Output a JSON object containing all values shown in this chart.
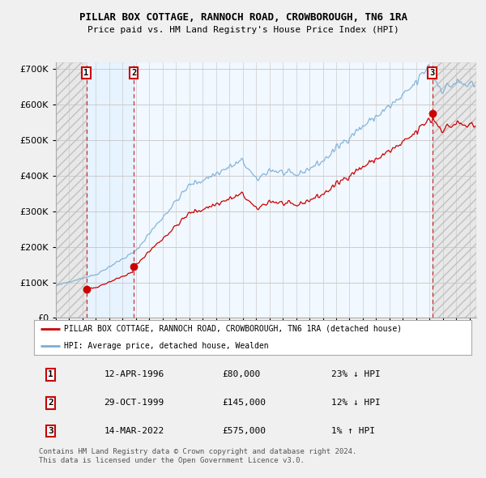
{
  "title": "PILLAR BOX COTTAGE, RANNOCH ROAD, CROWBOROUGH, TN6 1RA",
  "subtitle": "Price paid vs. HM Land Registry's House Price Index (HPI)",
  "ylim": [
    0,
    720000
  ],
  "yticks": [
    0,
    100000,
    200000,
    300000,
    400000,
    500000,
    600000,
    700000
  ],
  "ytick_labels": [
    "£0",
    "£100K",
    "£200K",
    "£300K",
    "£400K",
    "£500K",
    "£600K",
    "£700K"
  ],
  "xmin": 1994.0,
  "xmax": 2025.5,
  "sale_dates": [
    1996.28,
    1999.83,
    2022.2
  ],
  "sale_prices": [
    80000,
    145000,
    575000
  ],
  "sale_labels": [
    "1",
    "2",
    "3"
  ],
  "legend_red": "PILLAR BOX COTTAGE, RANNOCH ROAD, CROWBOROUGH, TN6 1RA (detached house)",
  "legend_blue": "HPI: Average price, detached house, Wealden",
  "table_rows": [
    [
      "1",
      "12-APR-1996",
      "£80,000",
      "23% ↓ HPI"
    ],
    [
      "2",
      "29-OCT-1999",
      "£145,000",
      "12% ↓ HPI"
    ],
    [
      "3",
      "14-MAR-2022",
      "£575,000",
      "1% ↑ HPI"
    ]
  ],
  "footnote": "Contains HM Land Registry data © Crown copyright and database right 2024.\nThis data is licensed under the Open Government Licence v3.0.",
  "bg_color": "#f0f0f0",
  "plot_bg": "#ffffff",
  "red_color": "#cc0000",
  "blue_color": "#7aaed6",
  "shade_color": "#ddeeff"
}
